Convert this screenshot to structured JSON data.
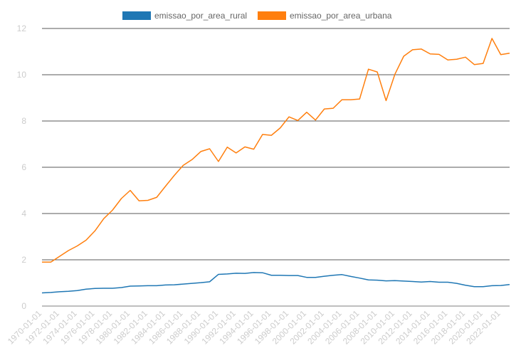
{
  "chart_data": {
    "type": "line",
    "title": "",
    "xlabel": "",
    "ylabel": "",
    "ylim": [
      0,
      12
    ],
    "yticks": [
      0,
      2,
      4,
      6,
      8,
      10,
      12
    ],
    "grid": true,
    "legend": "top-center",
    "x": [
      "1970-01-01",
      "1971-01-01",
      "1972-01-01",
      "1973-01-01",
      "1974-01-01",
      "1975-01-01",
      "1976-01-01",
      "1977-01-01",
      "1978-01-01",
      "1979-01-01",
      "1980-01-01",
      "1981-01-01",
      "1982-01-01",
      "1983-01-01",
      "1984-01-01",
      "1985-01-01",
      "1986-01-01",
      "1987-01-01",
      "1988-01-01",
      "1989-01-01",
      "1990-01-01",
      "1991-01-01",
      "1992-01-01",
      "1993-01-01",
      "1994-01-01",
      "1995-01-01",
      "1996-01-01",
      "1997-01-01",
      "1998-01-01",
      "1999-01-01",
      "2000-01-01",
      "2001-01-01",
      "2002-01-01",
      "2003-01-01",
      "2004-01-01",
      "2005-01-01",
      "2006-01-01",
      "2007-01-01",
      "2008-01-01",
      "2009-01-01",
      "2010-01-01",
      "2011-01-01",
      "2012-01-01",
      "2013-01-01",
      "2014-01-01",
      "2015-01-01",
      "2016-01-01",
      "2017-01-01",
      "2018-01-01",
      "2019-01-01",
      "2020-01-01",
      "2021-01-01",
      "2022-01-01",
      "2023-01-01"
    ],
    "x_tick_labels": [
      "1970-01-01",
      "1972-01-01",
      "1974-01-01",
      "1976-01-01",
      "1978-01-01",
      "1980-01-01",
      "1982-01-01",
      "1984-01-01",
      "1986-01-01",
      "1988-01-01",
      "1990-01-01",
      "1992-01-01",
      "1994-01-01",
      "1996-01-01",
      "1998-01-01",
      "2000-01-01",
      "2002-01-01",
      "2004-01-01",
      "2006-01-01",
      "2008-01-01",
      "2010-01-01",
      "2012-01-01",
      "2014-01-01",
      "2016-01-01",
      "2018-01-01",
      "2020-01-01",
      "2022-01-01"
    ],
    "series": [
      {
        "name": "emissao_por_area_rural",
        "color": "#1f77b4",
        "values": [
          0.57,
          0.59,
          0.62,
          0.64,
          0.67,
          0.73,
          0.76,
          0.77,
          0.77,
          0.8,
          0.86,
          0.87,
          0.88,
          0.88,
          0.91,
          0.92,
          0.95,
          0.98,
          1.01,
          1.05,
          1.37,
          1.39,
          1.42,
          1.41,
          1.45,
          1.44,
          1.33,
          1.33,
          1.32,
          1.32,
          1.24,
          1.24,
          1.29,
          1.33,
          1.36,
          1.28,
          1.21,
          1.13,
          1.12,
          1.09,
          1.1,
          1.08,
          1.06,
          1.04,
          1.06,
          1.03,
          1.03,
          0.98,
          0.9,
          0.84,
          0.84,
          0.88,
          0.89,
          0.93
        ]
      },
      {
        "name": "emissao_por_area_urbana",
        "color": "#ff7f0e",
        "values": [
          1.9,
          1.9,
          2.15,
          2.4,
          2.6,
          2.85,
          3.25,
          3.78,
          4.15,
          4.65,
          5.0,
          4.55,
          4.57,
          4.7,
          5.18,
          5.65,
          6.08,
          6.33,
          6.68,
          6.8,
          6.25,
          6.87,
          6.62,
          6.88,
          6.78,
          7.42,
          7.38,
          7.7,
          8.18,
          8.02,
          8.38,
          8.04,
          8.52,
          8.55,
          8.92,
          8.92,
          8.95,
          10.24,
          10.12,
          8.88,
          10.02,
          10.8,
          11.08,
          11.11,
          10.9,
          10.88,
          10.64,
          10.67,
          10.76,
          10.44,
          10.49,
          11.57,
          10.87,
          10.93
        ]
      }
    ]
  }
}
